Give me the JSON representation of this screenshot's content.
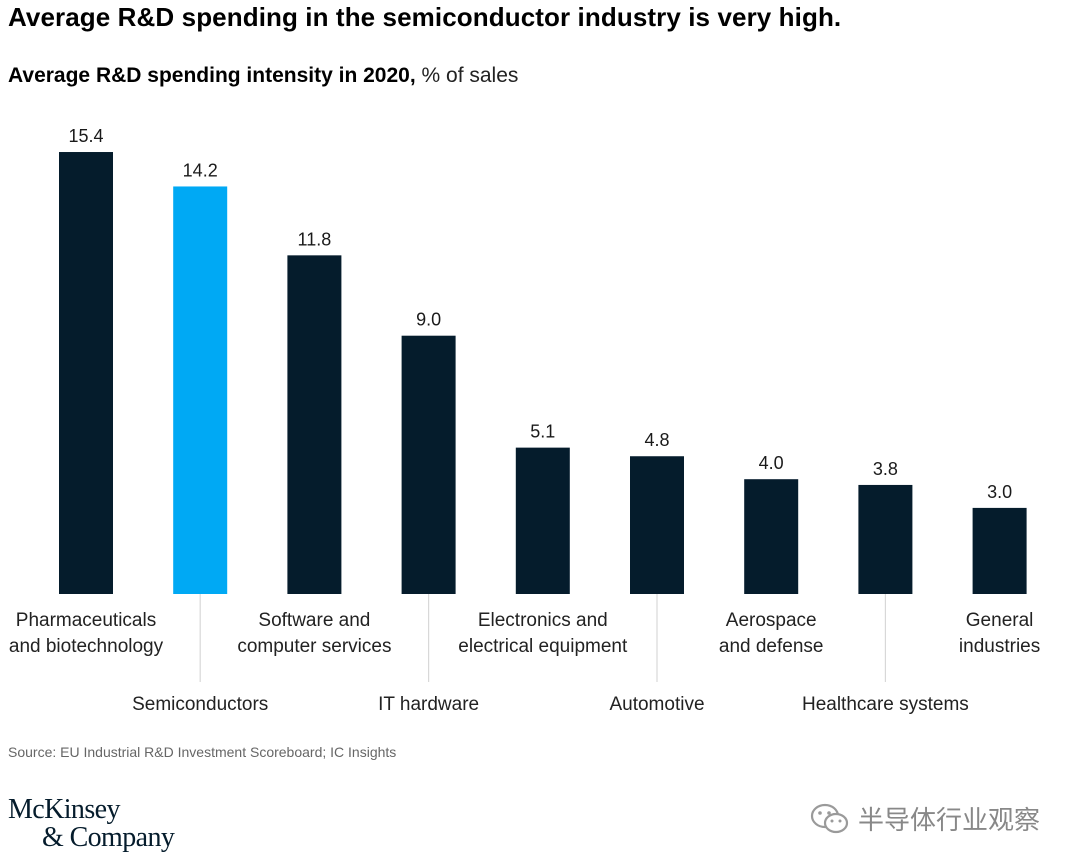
{
  "headline": "Average R&D spending in the semiconductor industry is very high.",
  "chart_data": {
    "type": "bar",
    "title": "Average R&D spending intensity in 2020,",
    "unit_label": "% of sales",
    "xlabel": "",
    "ylabel": "% of sales",
    "ylim": [
      0,
      16
    ],
    "grid": false,
    "categories": [
      "Pharmaceuticals and biotechnology",
      "Semiconductors",
      "Software and computer services",
      "IT hardware",
      "Electronics and electrical equipment",
      "Automotive",
      "Aerospace and defense",
      "Healthcare systems",
      "General industries"
    ],
    "category_label_lines": [
      [
        "Pharmaceuticals",
        "and biotechnology"
      ],
      [
        "Semiconductors"
      ],
      [
        "Software and",
        "computer services"
      ],
      [
        "IT hardware"
      ],
      [
        "Electronics and",
        "electrical equipment"
      ],
      [
        "Automotive"
      ],
      [
        "Aerospace",
        "and defense"
      ],
      [
        "Healthcare systems"
      ],
      [
        "General",
        "industries"
      ]
    ],
    "values": [
      15.4,
      14.2,
      11.8,
      9.0,
      5.1,
      4.8,
      4.0,
      3.8,
      3.0
    ],
    "value_labels": [
      "15.4",
      "14.2",
      "11.8",
      "9.0",
      "5.1",
      "4.8",
      "4.0",
      "3.8",
      "3.0"
    ],
    "highlight_index": 1
  },
  "colors": {
    "bar": "#051c2c",
    "highlight": "#00a9f4",
    "leader_line": "#d8d8d8"
  },
  "source": "Source: EU Industrial R&D Investment Scoreboard; IC Insights",
  "logo": {
    "line1": "McKinsey",
    "line2": "& Company"
  },
  "watermark": {
    "text": "半导体行业观察",
    "icon": "wechat-icon"
  }
}
